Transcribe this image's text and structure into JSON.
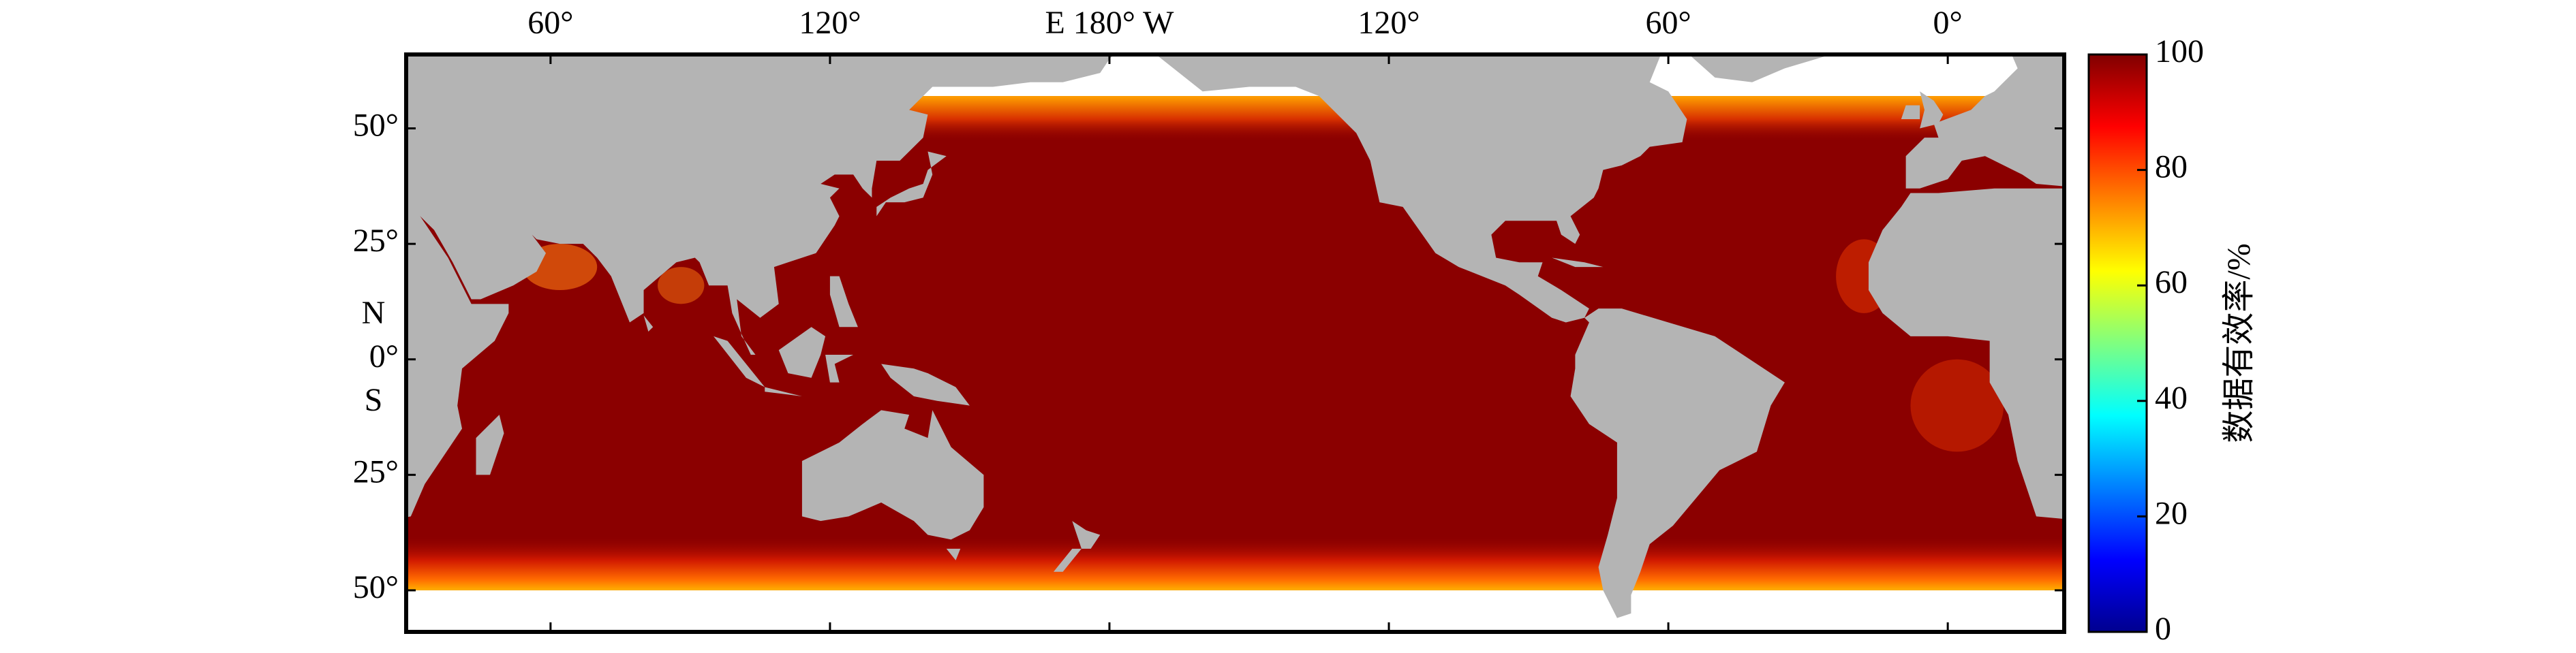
{
  "map": {
    "xlim": [
      29,
      385
    ],
    "ylim": [
      -59,
      66
    ],
    "lon_ticks": [
      {
        "value": 60,
        "label": "60°"
      },
      {
        "value": 120,
        "label": "120°"
      },
      {
        "value": 180,
        "label": "E 180° W"
      },
      {
        "value": 240,
        "label": "120°"
      },
      {
        "value": 300,
        "label": "60°"
      },
      {
        "value": 360,
        "label": "0°"
      }
    ],
    "lat_ticks": [
      {
        "value": 50,
        "label": "50°"
      },
      {
        "value": 25,
        "label": "25°"
      },
      {
        "value": 0,
        "label": "0°"
      },
      {
        "value": -25,
        "label": "25°"
      },
      {
        "value": -50,
        "label": "50°"
      }
    ],
    "north_label": "N",
    "south_label": "S"
  },
  "colorbar": {
    "label": "数据有效率/%",
    "lim": [
      0,
      100
    ],
    "ticks": [
      0,
      20,
      40,
      60,
      80,
      100
    ]
  }
}
